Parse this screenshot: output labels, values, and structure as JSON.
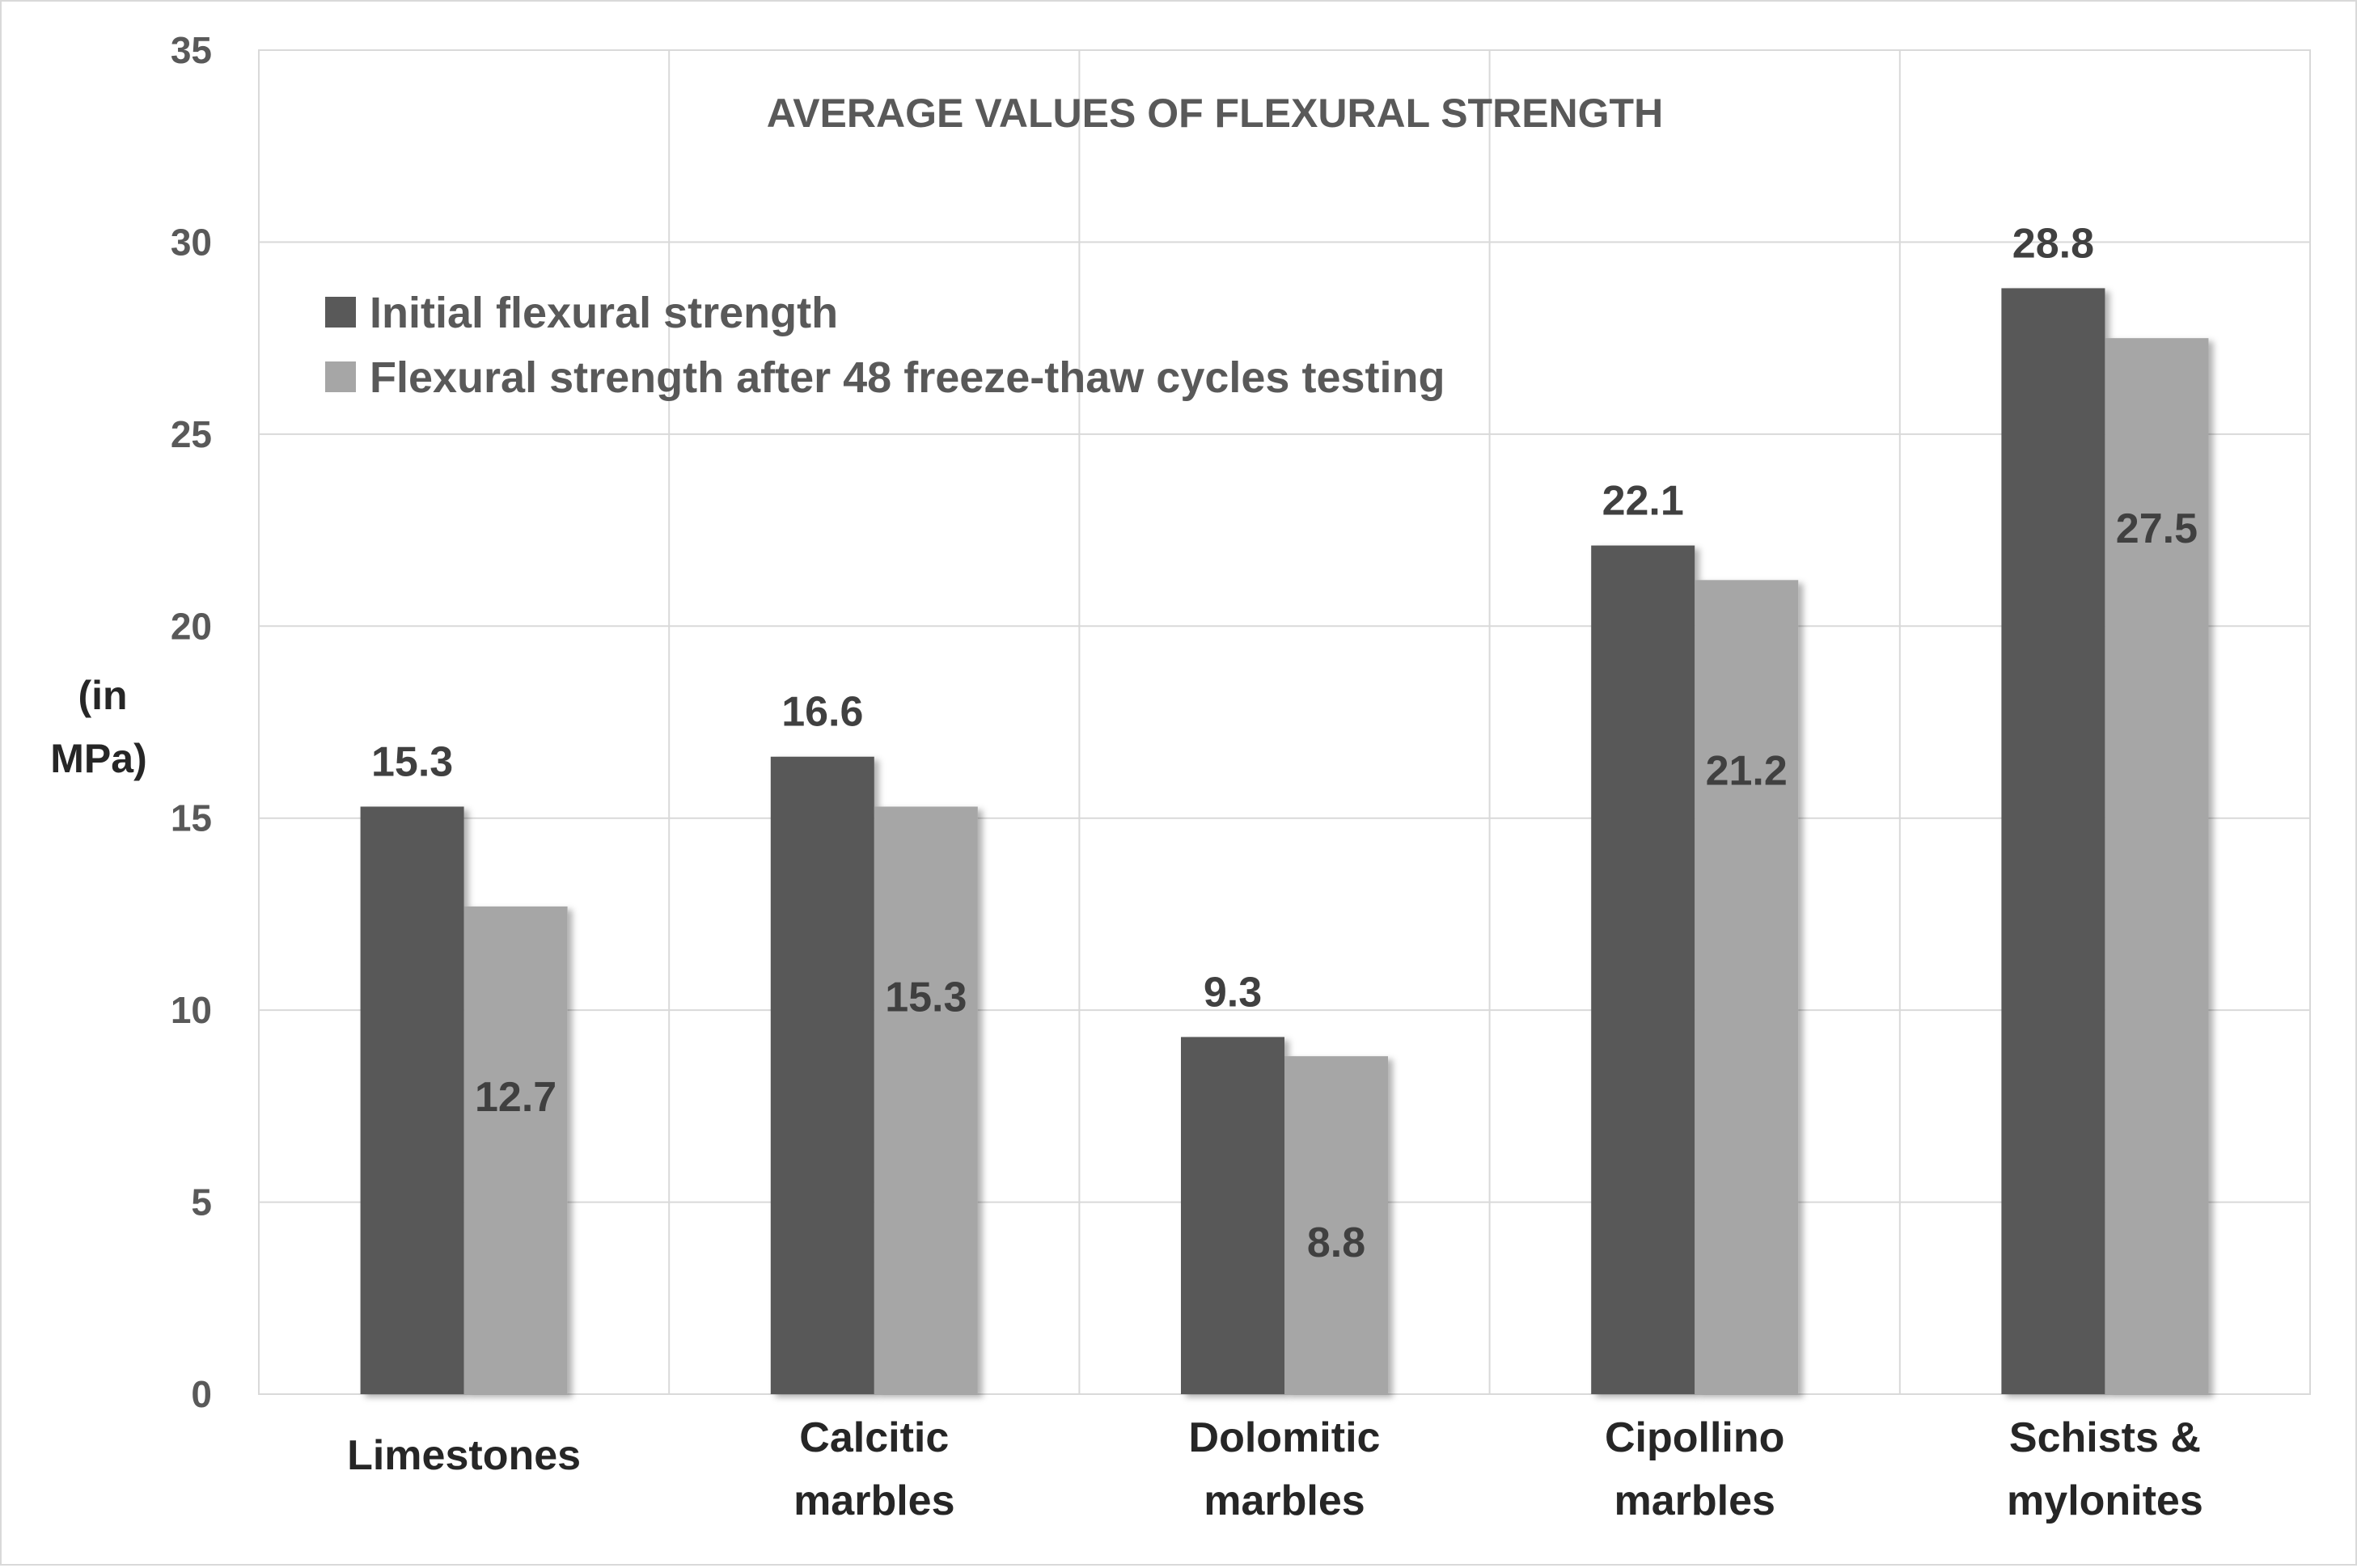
{
  "chart_data": {
    "type": "bar",
    "title": "AVERAGE VALUES OF FLEXURAL STRENGTH",
    "ylabel_lines": [
      "(in",
      "MPa)"
    ],
    "xlabel": "",
    "ylim": [
      0,
      35
    ],
    "yticks": [
      0,
      5,
      10,
      15,
      20,
      25,
      30,
      35
    ],
    "grid": true,
    "legend_position": "top-left",
    "categories": [
      [
        "Limestones"
      ],
      [
        "Calcitic",
        "marbles"
      ],
      [
        "Dolomitic",
        "marbles"
      ],
      [
        "Cipollino",
        "marbles"
      ],
      [
        "Schists &",
        "mylonites"
      ]
    ],
    "series": [
      {
        "name": "Initial flexural strength",
        "color": "#595959",
        "values": [
          15.3,
          16.6,
          9.3,
          22.1,
          28.8
        ],
        "labels": [
          "15.3",
          "16.6",
          "9.3",
          "22.1",
          "28.8"
        ]
      },
      {
        "name": "Flexural strength after 48 freeze-thaw cycles testing",
        "color": "#a6a6a6",
        "values": [
          12.7,
          15.3,
          8.8,
          21.2,
          27.5
        ],
        "labels": [
          "12.7",
          "15.3",
          "8.8",
          "21.2",
          "27.5"
        ]
      }
    ]
  }
}
